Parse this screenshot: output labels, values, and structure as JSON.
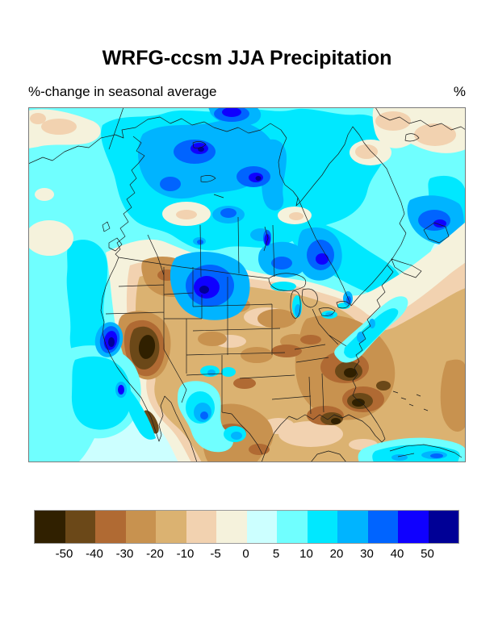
{
  "title": "WRFG-ccsm JJA Precipitation",
  "subtitle": {
    "left": "%-change in seasonal average",
    "units": "%"
  },
  "map": {
    "description": "Filled-contour map of percent change in JJA seasonal average precipitation over North America with coastlines, US state and Canadian province boundaries",
    "boundary_color": "#1a1a1a",
    "frame_color": "#7a7a7a"
  },
  "colorbar": {
    "labels": [
      "-50",
      "-40",
      "-30",
      "-20",
      "-10",
      "-5",
      "0",
      "5",
      "10",
      "20",
      "30",
      "40",
      "50"
    ],
    "colors": [
      "#302000",
      "#6b4818",
      "#b06a33",
      "#c8924f",
      "#dbb271",
      "#f2d2b0",
      "#f5f2dc",
      "#ccffff",
      "#70ffff",
      "#00e8ff",
      "#00b4ff",
      "#0064ff",
      "#0f00ff",
      "#000096"
    ]
  }
}
